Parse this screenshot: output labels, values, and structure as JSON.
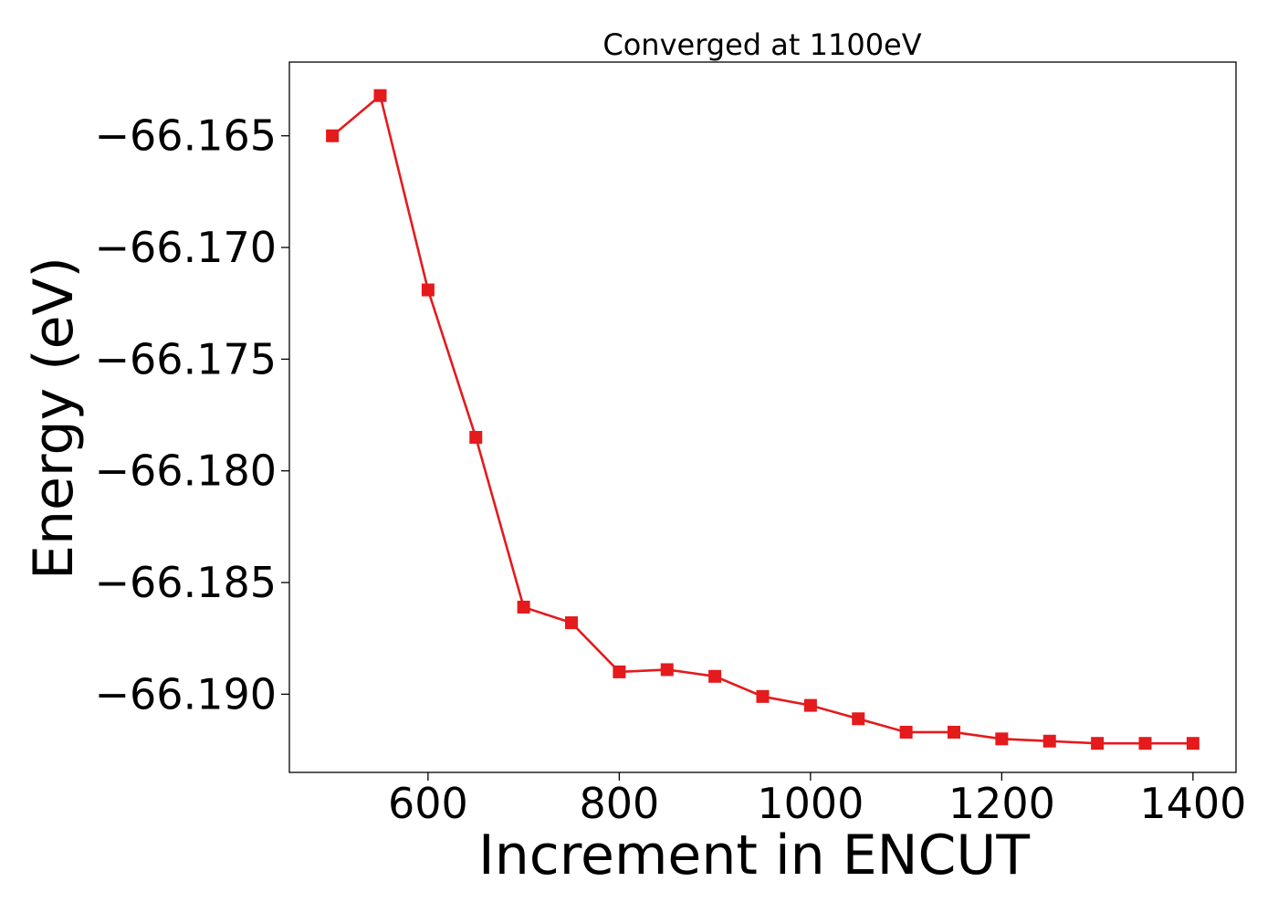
{
  "chart_data": {
    "type": "line",
    "title": "Converged at 1100eV",
    "xlabel": "Increment in ENCUT",
    "ylabel": "Energy (eV)",
    "xlim": [
      455,
      1445
    ],
    "ylim": [
      -66.1935,
      -66.1617
    ],
    "xticks": [
      600,
      800,
      1000,
      1200,
      1400
    ],
    "xtick_labels": [
      "600",
      "800",
      "1000",
      "1200",
      "1400"
    ],
    "yticks": [
      -66.165,
      -66.17,
      -66.175,
      -66.18,
      -66.185,
      -66.19
    ],
    "ytick_labels": [
      "−66.165",
      "−66.170",
      "−66.175",
      "−66.180",
      "−66.185",
      "−66.190"
    ],
    "grid": false,
    "legend": false,
    "series": [
      {
        "color": "#e41a1c",
        "marker": "square",
        "x": [
          500,
          550,
          600,
          650,
          700,
          750,
          800,
          850,
          900,
          950,
          1000,
          1050,
          1100,
          1150,
          1200,
          1250,
          1300,
          1350,
          1400
        ],
        "y": [
          -66.165,
          -66.1632,
          -66.1719,
          -66.1785,
          -66.1861,
          -66.1868,
          -66.189,
          -66.1889,
          -66.1892,
          -66.1901,
          -66.1905,
          -66.1911,
          -66.1917,
          -66.1917,
          -66.192,
          -66.1921,
          -66.1922,
          -66.1922,
          -66.1922
        ]
      }
    ]
  }
}
